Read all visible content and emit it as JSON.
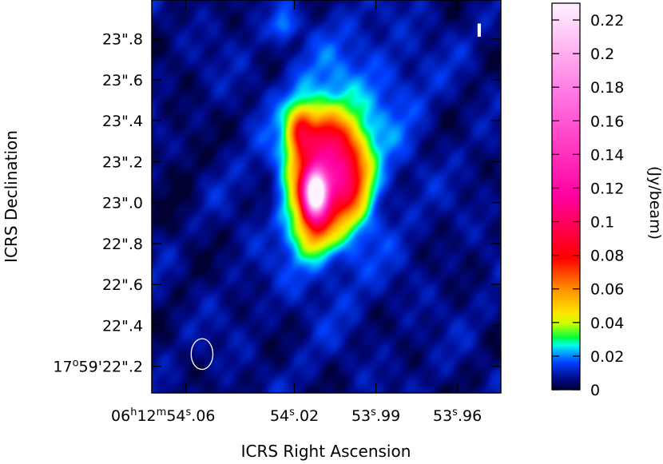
{
  "chart_data": {
    "type": "heatmap",
    "stokes_label": "I",
    "xlabel": "ICRS Right Ascension",
    "ylabel": "ICRS Declination",
    "colorbar_label": "(Jy/beam)",
    "colorbar_range": [
      0,
      0.23
    ],
    "colorbar_ticks": [
      {
        "value": 0,
        "label": "0"
      },
      {
        "value": 0.02,
        "label": "0.02"
      },
      {
        "value": 0.04,
        "label": "0.04"
      },
      {
        "value": 0.06,
        "label": "0.06"
      },
      {
        "value": 0.08,
        "label": "0.08"
      },
      {
        "value": 0.1,
        "label": "0.1"
      },
      {
        "value": 0.12,
        "label": "0.12"
      },
      {
        "value": 0.14,
        "label": "0.14"
      },
      {
        "value": 0.16,
        "label": "0.16"
      },
      {
        "value": 0.18,
        "label": "0.18"
      },
      {
        "value": 0.2,
        "label": "0.2"
      },
      {
        "value": 0.22,
        "label": "0.22"
      }
    ],
    "xlim_seconds": [
      54.0725,
      53.944
    ],
    "ylim_arcsec": [
      22.07,
      23.99
    ],
    "x_ticks": [
      {
        "value": 54.06,
        "h": "06",
        "m": "12",
        "s": "54",
        "frac": ".06",
        "full": true
      },
      {
        "value": 54.02,
        "s": "54",
        "frac": ".02",
        "full": false
      },
      {
        "value": 53.99,
        "s": "53",
        "frac": ".99",
        "full": false
      },
      {
        "value": 53.96,
        "s": "53",
        "frac": ".96",
        "full": false
      }
    ],
    "y_ticks": [
      {
        "value": 22.2,
        "deg": "17",
        "min": "59",
        "sec": "22",
        "frac": ".2",
        "full": true
      },
      {
        "value": 22.4,
        "sec": "22",
        "frac": ".4",
        "full": false
      },
      {
        "value": 22.6,
        "sec": "22",
        "frac": ".6",
        "full": false
      },
      {
        "value": 22.8,
        "sec": "22",
        "frac": ".8",
        "full": false
      },
      {
        "value": 23.0,
        "sec": "23",
        "frac": ".0",
        "full": false
      },
      {
        "value": 23.2,
        "sec": "23",
        "frac": ".2",
        "full": false
      },
      {
        "value": 23.4,
        "sec": "23",
        "frac": ".4",
        "full": false
      },
      {
        "value": 23.6,
        "sec": "23",
        "frac": ".6",
        "full": false
      },
      {
        "value": 23.8,
        "sec": "23",
        "frac": ".8",
        "full": false
      }
    ],
    "background_jy": 0.006,
    "sources": [
      {
        "ra_s": 54.0123,
        "dec_arcsec": 23.05,
        "peak": 0.225,
        "sigma_ra": 0.0028,
        "sigma_dec": 0.072
      },
      {
        "ra_s": 54.0085,
        "dec_arcsec": 23.14,
        "peak": 0.06,
        "sigma_ra": 0.0082,
        "sigma_dec": 0.2
      },
      {
        "ra_s": 54.001,
        "dec_arcsec": 23.13,
        "peak": 0.045,
        "sigma_ra": 0.006,
        "sigma_dec": 0.13
      },
      {
        "ra_s": 54.0178,
        "dec_arcsec": 23.36,
        "peak": 0.035,
        "sigma_ra": 0.003,
        "sigma_dec": 0.08
      },
      {
        "ra_s": 54.01,
        "dec_arcsec": 23.32,
        "peak": 0.028,
        "sigma_ra": 0.007,
        "sigma_dec": 0.09
      },
      {
        "ra_s": 54.0125,
        "dec_arcsec": 22.88,
        "peak": 0.03,
        "sigma_ra": 0.004,
        "sigma_dec": 0.09
      },
      {
        "ra_s": 54.019,
        "dec_arcsec": 23.05,
        "peak": 0.012,
        "sigma_ra": 0.004,
        "sigma_dec": 0.22
      },
      {
        "ra_s": 54.006,
        "dec_arcsec": 23.2,
        "peak": 0.016,
        "sigma_ra": 0.015,
        "sigma_dec": 0.38
      },
      {
        "ra_s": 54.024,
        "dec_arcsec": 23.86,
        "peak": 0.014,
        "sigma_ra": 0.003,
        "sigma_dec": 0.05
      },
      {
        "ra_s": 53.985,
        "dec_arcsec": 23.55,
        "peak": 0.006,
        "sigma_ra": 0.012,
        "sigma_dec": 0.22
      },
      {
        "ra_s": 54.03,
        "dec_arcsec": 23.0,
        "peak": -0.006,
        "sigma_ra": 0.002,
        "sigma_dec": 0.06
      },
      {
        "ra_s": 54.062,
        "dec_arcsec": 23.15,
        "peak": -0.004,
        "sigma_ra": 0.006,
        "sigma_dec": 0.3
      }
    ],
    "beam": {
      "ra_s": 54.054,
      "dec_arcsec": 22.26,
      "major_arcsec": 0.15,
      "minor_ra_s": 0.004
    }
  }
}
